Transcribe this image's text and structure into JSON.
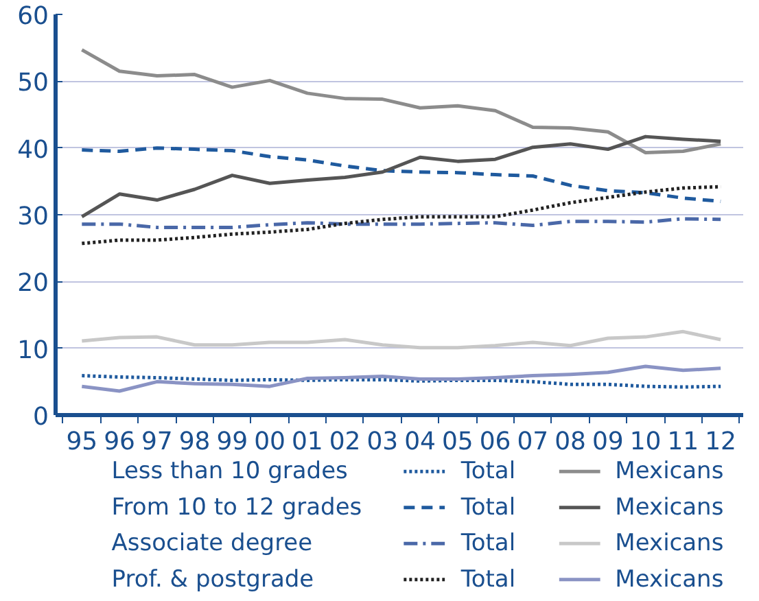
{
  "chart_data": {
    "type": "line",
    "categories": [
      "95",
      "96",
      "97",
      "98",
      "99",
      "00",
      "01",
      "02",
      "03",
      "04",
      "05",
      "06",
      "07",
      "08",
      "09",
      "10",
      "11",
      "12"
    ],
    "annotations": [
      "Less than 10 grades",
      "From 10 to 12 grades",
      "Associate degree",
      "Prof. & postgrade"
    ],
    "ylim": [
      0,
      60
    ],
    "yticks": [
      0,
      10,
      20,
      30,
      40,
      50,
      60
    ],
    "grid": "y",
    "legend": "bottom",
    "series": [
      {
        "name": "Total",
        "color": "#1f5a9e",
        "line_style": "dotted",
        "values": [
          5.9,
          5.7,
          5.6,
          5.4,
          5.2,
          5.3,
          5.2,
          5.3,
          5.3,
          5.1,
          5.2,
          5.2,
          5.0,
          4.6,
          4.6,
          4.3,
          4.2,
          4.3
        ]
      },
      {
        "name": "Mexicans",
        "color": "#8c8c8c",
        "line_style": "solid",
        "values": [
          54.7,
          51.5,
          50.8,
          51.0,
          49.1,
          50.1,
          48.2,
          47.4,
          47.3,
          46.0,
          46.3,
          45.6,
          43.1,
          43.0,
          42.4,
          39.3,
          39.5,
          40.6
        ]
      },
      {
        "name": "Total",
        "color": "#1f5a9e",
        "line_style": "dashed",
        "values": [
          39.7,
          39.5,
          40.0,
          39.8,
          39.6,
          38.7,
          38.2,
          37.3,
          36.6,
          36.4,
          36.3,
          36.0,
          35.8,
          34.4,
          33.6,
          33.3,
          32.5,
          32.0
        ]
      },
      {
        "name": "Mexicans",
        "color": "#555555",
        "line_style": "solid",
        "values": [
          29.7,
          33.1,
          32.2,
          33.8,
          35.9,
          34.7,
          35.2,
          35.6,
          36.4,
          38.6,
          38.0,
          38.3,
          40.1,
          40.6,
          39.8,
          41.7,
          41.3,
          41.0
        ]
      },
      {
        "name": "Total",
        "color": "#4a68a8",
        "line_style": "dashdot",
        "values": [
          28.6,
          28.6,
          28.1,
          28.1,
          28.1,
          28.5,
          28.8,
          28.6,
          28.6,
          28.6,
          28.7,
          28.8,
          28.4,
          29.0,
          29.0,
          28.9,
          29.4,
          29.3
        ]
      },
      {
        "name": "Mexicans",
        "color": "#c8c8c8",
        "line_style": "solid",
        "values": [
          11.1,
          11.6,
          11.7,
          10.5,
          10.5,
          10.9,
          10.9,
          11.3,
          10.5,
          10.1,
          10.1,
          10.4,
          10.9,
          10.4,
          11.5,
          11.7,
          12.5,
          11.3
        ]
      },
      {
        "name": "Total",
        "color": "#222222",
        "line_style": "dotted",
        "values": [
          25.7,
          26.2,
          26.2,
          26.6,
          27.1,
          27.4,
          27.8,
          28.7,
          29.3,
          29.7,
          29.7,
          29.7,
          30.7,
          31.8,
          32.6,
          33.4,
          34.0,
          34.2
        ]
      },
      {
        "name": "Mexicans",
        "color": "#8a93c4",
        "line_style": "solid",
        "values": [
          4.3,
          3.6,
          5.0,
          4.7,
          4.6,
          4.3,
          5.5,
          5.6,
          5.8,
          5.4,
          5.4,
          5.6,
          5.9,
          6.1,
          6.4,
          7.3,
          6.7,
          7.0
        ]
      }
    ]
  }
}
